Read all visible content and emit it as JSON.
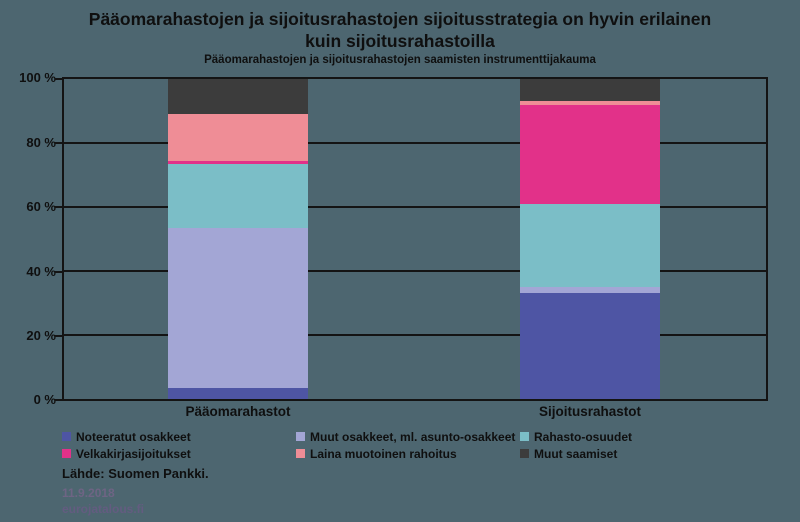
{
  "header": {
    "title": "Pääomarahastojen ja sijoitusrahastojen sijoitusstrategia on hyvin erilainen kuin sijoitusrahastoilla",
    "subtitle": "Pääomarahastojen ja sijoitusrahastojen saamisten instrumenttijakauma"
  },
  "chart_data": {
    "type": "bar",
    "stacked": true,
    "categories": [
      "Pääomarahastot",
      "Sijoitusrahastot"
    ],
    "series": [
      {
        "name": "Noteeratut osakkeet",
        "color": "#4E55A4",
        "values": [
          3.5,
          33
        ]
      },
      {
        "name": "Muut osakkeet, ml. asunto-osakkeet",
        "color": "#A3A6D5",
        "values": [
          50,
          2
        ]
      },
      {
        "name": "Rahasto-osuudet",
        "color": "#7BBEC7",
        "values": [
          20,
          26
        ]
      },
      {
        "name": "Velkakirjasijoitukset",
        "color": "#E23189",
        "values": [
          1,
          31
        ]
      },
      {
        "name": "Laina muotoinen rahoitus",
        "color": "#EF8D96",
        "values": [
          14.5,
          1
        ]
      },
      {
        "name": "Muut saamiset",
        "color": "#3C3C3C",
        "values": [
          11,
          7
        ]
      }
    ],
    "yticks": [
      "100 %",
      "80 %",
      "60 %",
      "40 %",
      "20 %",
      "0 %"
    ],
    "ylim": [
      0,
      100
    ],
    "grid": true,
    "legend_position": "bottom"
  },
  "footer": {
    "source": "Lähde: Suomen Pankki.",
    "date": "11.9.2018",
    "site": "eurojatalous.fi"
  },
  "colors": {
    "background": "#4D6670",
    "axis": "#141414",
    "text": "#0F0F0F",
    "date_text": "#6E6484",
    "site_text": "#635C80"
  }
}
